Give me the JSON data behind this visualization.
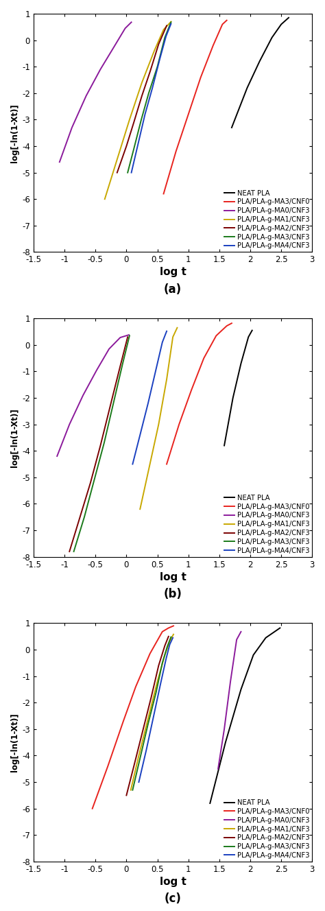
{
  "xlim": [
    -1.5,
    3
  ],
  "ylim": [
    -8,
    1
  ],
  "xlabel": "log t",
  "ylabel": "log[-ln(1-Xt)]",
  "legend_labels": [
    "NEAT PLA",
    "PLA/PLA-g-MA3/CNF0",
    "PLA/PLA-g-MA0/CNF3",
    "PLA/PLA-g-MA1/CNF3",
    "PLA/PLA-g-MA2/CNF3",
    "PLA/PLA-g-MA3/CNF3",
    "PLA/PLA-g-MA4/CNF3"
  ],
  "colors": [
    "black",
    "#e8231e",
    "#8b1a9b",
    "#c8a800",
    "#7a0000",
    "#1a7a1a",
    "#1a40c0"
  ],
  "panel_labels": [
    "(a)",
    "(b)",
    "(c)"
  ],
  "curves_a": [
    {
      "x": [
        1.7,
        1.95,
        2.15,
        2.35,
        2.5,
        2.62
      ],
      "y": [
        -3.3,
        -1.8,
        -0.8,
        0.1,
        0.6,
        0.85
      ]
    },
    {
      "x": [
        0.6,
        0.8,
        1.0,
        1.2,
        1.4,
        1.55,
        1.62
      ],
      "y": [
        -5.8,
        -4.2,
        -2.8,
        -1.4,
        -0.2,
        0.6,
        0.75
      ]
    },
    {
      "x": [
        -1.08,
        -0.88,
        -0.65,
        -0.42,
        -0.2,
        -0.02,
        0.08
      ],
      "y": [
        -4.6,
        -3.3,
        -2.1,
        -1.1,
        -0.25,
        0.45,
        0.68
      ]
    },
    {
      "x": [
        -0.35,
        -0.15,
        0.05,
        0.25,
        0.45,
        0.6,
        0.72
      ],
      "y": [
        -6.0,
        -4.5,
        -3.0,
        -1.6,
        -0.4,
        0.4,
        0.7
      ]
    },
    {
      "x": [
        -0.15,
        0.0,
        0.12,
        0.25,
        0.38,
        0.52,
        0.65
      ],
      "y": [
        -5.0,
        -4.0,
        -3.1,
        -2.1,
        -1.2,
        -0.15,
        0.55
      ]
    },
    {
      "x": [
        0.02,
        0.12,
        0.24,
        0.36,
        0.5,
        0.62,
        0.72
      ],
      "y": [
        -5.0,
        -4.1,
        -3.0,
        -2.0,
        -1.0,
        0.1,
        0.68
      ]
    },
    {
      "x": [
        0.08,
        0.18,
        0.3,
        0.42,
        0.54,
        0.64,
        0.72
      ],
      "y": [
        -5.0,
        -4.0,
        -2.8,
        -1.8,
        -0.7,
        0.15,
        0.62
      ]
    }
  ],
  "curves_b": [
    {
      "x": [
        1.58,
        1.72,
        1.85,
        1.97,
        2.03
      ],
      "y": [
        -3.8,
        -2.0,
        -0.7,
        0.3,
        0.55
      ]
    },
    {
      "x": [
        0.65,
        0.85,
        1.05,
        1.25,
        1.45,
        1.62,
        1.7
      ],
      "y": [
        -4.5,
        -3.0,
        -1.7,
        -0.5,
        0.35,
        0.72,
        0.82
      ]
    },
    {
      "x": [
        -1.12,
        -0.92,
        -0.7,
        -0.48,
        -0.28,
        -0.1,
        0.04
      ],
      "y": [
        -4.2,
        -3.0,
        -1.9,
        -0.95,
        -0.15,
        0.28,
        0.38
      ]
    },
    {
      "x": [
        0.22,
        0.37,
        0.52,
        0.65,
        0.75,
        0.82
      ],
      "y": [
        -6.2,
        -4.6,
        -3.0,
        -1.3,
        0.3,
        0.65
      ]
    },
    {
      "x": [
        -0.92,
        -0.75,
        -0.58,
        -0.42,
        -0.25,
        -0.1,
        0.02
      ],
      "y": [
        -7.8,
        -6.5,
        -5.2,
        -3.8,
        -2.2,
        -0.8,
        0.3
      ]
    },
    {
      "x": [
        -0.85,
        -0.68,
        -0.52,
        -0.36,
        -0.2,
        -0.06,
        0.05
      ],
      "y": [
        -7.8,
        -6.5,
        -5.1,
        -3.7,
        -2.1,
        -0.7,
        0.35
      ]
    },
    {
      "x": [
        0.1,
        0.22,
        0.35,
        0.48,
        0.58,
        0.65
      ],
      "y": [
        -4.5,
        -3.4,
        -2.2,
        -0.9,
        0.1,
        0.52
      ]
    }
  ],
  "curves_c": [
    {
      "x": [
        1.35,
        1.6,
        1.85,
        2.05,
        2.25,
        2.48
      ],
      "y": [
        -5.8,
        -3.5,
        -1.5,
        -0.2,
        0.45,
        0.82
      ]
    },
    {
      "x": [
        -0.55,
        -0.3,
        -0.05,
        0.15,
        0.38,
        0.58,
        0.68,
        0.76
      ],
      "y": [
        -6.0,
        -4.4,
        -2.7,
        -1.4,
        -0.15,
        0.68,
        0.82,
        0.9
      ]
    },
    {
      "x": [
        1.48,
        1.58,
        1.68,
        1.78,
        1.85
      ],
      "y": [
        -4.5,
        -3.0,
        -1.2,
        0.38,
        0.68
      ]
    },
    {
      "x": [
        0.07,
        0.2,
        0.35,
        0.5,
        0.62,
        0.7,
        0.76
      ],
      "y": [
        -5.3,
        -4.0,
        -2.6,
        -1.2,
        -0.2,
        0.32,
        0.58
      ]
    },
    {
      "x": [
        0.0,
        0.12,
        0.26,
        0.4,
        0.52,
        0.62,
        0.68
      ],
      "y": [
        -5.5,
        -4.4,
        -3.1,
        -1.8,
        -0.6,
        0.15,
        0.5
      ]
    },
    {
      "x": [
        0.1,
        0.22,
        0.35,
        0.48,
        0.58,
        0.66,
        0.72
      ],
      "y": [
        -5.3,
        -4.1,
        -2.8,
        -1.6,
        -0.5,
        0.12,
        0.48
      ]
    },
    {
      "x": [
        0.2,
        0.32,
        0.44,
        0.55,
        0.64,
        0.7,
        0.75
      ],
      "y": [
        -5.0,
        -3.8,
        -2.5,
        -1.3,
        -0.35,
        0.2,
        0.45
      ]
    }
  ]
}
